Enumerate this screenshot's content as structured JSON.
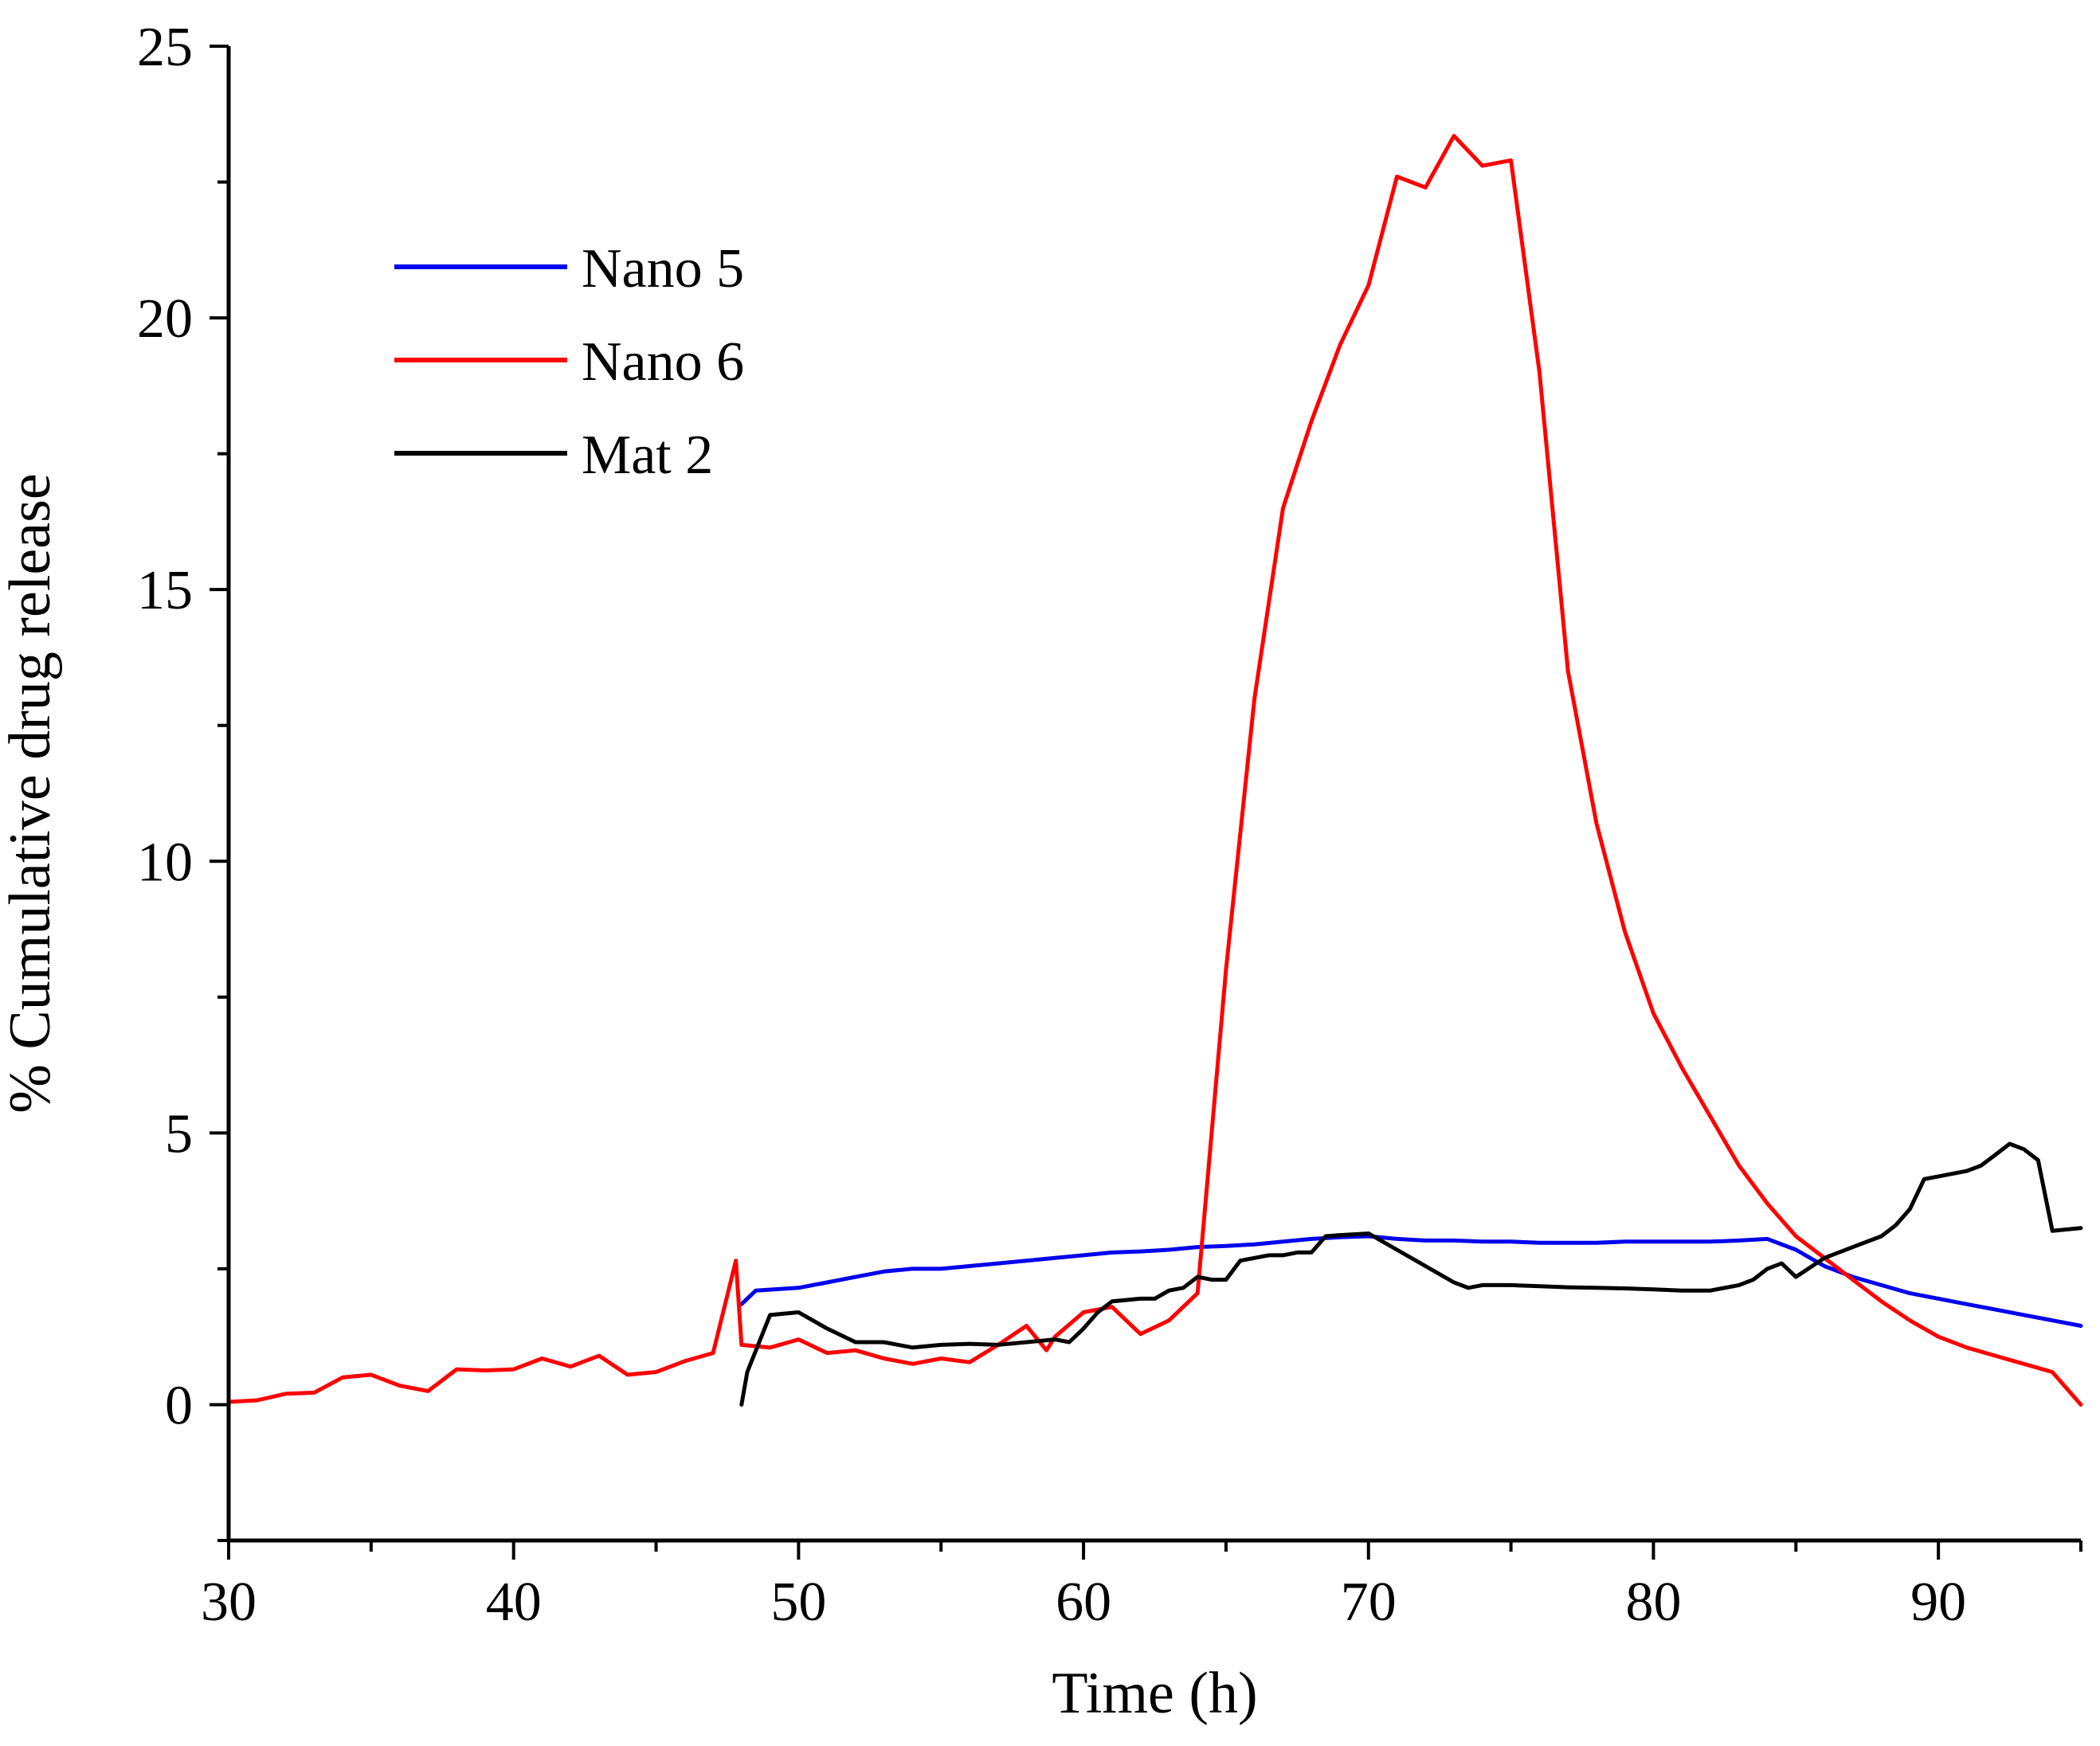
{
  "chart_data": {
    "type": "line",
    "title": "",
    "xlabel": "Time (h)",
    "ylabel": "% Cumulative drug release",
    "xlim": [
      30,
      95
    ],
    "ylim": [
      -2.5,
      25
    ],
    "xticks": [
      30,
      40,
      50,
      60,
      70,
      80,
      90
    ],
    "yticks": [
      0,
      5,
      10,
      15,
      20,
      25
    ],
    "grid": false,
    "legend_position": "top-left",
    "series": [
      {
        "name": "Nano 5",
        "color": "#0000ee",
        "x": [
          48,
          48.5,
          50,
          51,
          52,
          53,
          54,
          55,
          56,
          57,
          58,
          59,
          60,
          61,
          62,
          63,
          64,
          65,
          66,
          67,
          68,
          69,
          70,
          71,
          72,
          73,
          74,
          75,
          76,
          77,
          78,
          79,
          80,
          81,
          82,
          83,
          84,
          85,
          86,
          87,
          88,
          89,
          90,
          91,
          92,
          93,
          94,
          95
        ],
        "values": [
          1.85,
          2.1,
          2.15,
          2.25,
          2.35,
          2.45,
          2.5,
          2.5,
          2.55,
          2.6,
          2.65,
          2.7,
          2.75,
          2.8,
          2.82,
          2.85,
          2.9,
          2.92,
          2.95,
          3.0,
          3.05,
          3.08,
          3.1,
          3.05,
          3.02,
          3.02,
          3.0,
          3.0,
          2.98,
          2.98,
          2.98,
          3.0,
          3.0,
          3.0,
          3.0,
          3.02,
          3.05,
          2.85,
          2.55,
          2.35,
          2.2,
          2.05,
          1.95,
          1.85,
          1.75,
          1.65,
          1.55,
          1.45
        ]
      },
      {
        "name": "Nano 6",
        "color": "#ff0000",
        "x": [
          30,
          31,
          32,
          33,
          34,
          35,
          36,
          37,
          38,
          39,
          40,
          41,
          42,
          43,
          44,
          45,
          46,
          47,
          47.8,
          48,
          49,
          50,
          51,
          52,
          53,
          54,
          55,
          56,
          57,
          58,
          58.7,
          59,
          60,
          61,
          62,
          63,
          64,
          65,
          66,
          67,
          68,
          69,
          70,
          71,
          72,
          73,
          74,
          75,
          76,
          77,
          78,
          79,
          80,
          81,
          82,
          83,
          84,
          85,
          86,
          87,
          88,
          89,
          90,
          91,
          92,
          93,
          94,
          95
        ],
        "values": [
          0.05,
          0.08,
          0.2,
          0.22,
          0.5,
          0.55,
          0.35,
          0.25,
          0.65,
          0.63,
          0.65,
          0.85,
          0.7,
          0.9,
          0.55,
          0.6,
          0.8,
          0.95,
          2.65,
          1.1,
          1.05,
          1.2,
          0.95,
          1.0,
          0.85,
          0.75,
          0.85,
          0.78,
          1.1,
          1.45,
          1.0,
          1.25,
          1.7,
          1.8,
          1.3,
          1.55,
          2.05,
          8.0,
          13.0,
          16.5,
          18.1,
          19.5,
          20.6,
          22.6,
          22.4,
          23.35,
          22.8,
          22.9,
          19.0,
          13.5,
          10.7,
          8.7,
          7.2,
          6.2,
          5.3,
          4.4,
          3.7,
          3.1,
          2.7,
          2.3,
          1.9,
          1.55,
          1.25,
          1.05,
          0.9,
          0.75,
          0.6,
          0.0
        ]
      },
      {
        "name": "Mat 2",
        "color": "#000000",
        "x": [
          48,
          48.2,
          49,
          50,
          51,
          52,
          53,
          53.5,
          54,
          55,
          56,
          57,
          58,
          59,
          59.5,
          60,
          60.5,
          61,
          62,
          62.5,
          63,
          63.5,
          64,
          64.5,
          65,
          65.5,
          66,
          66.5,
          67,
          67.5,
          68,
          68.5,
          69,
          70,
          71,
          72,
          73,
          73.5,
          74,
          74.5,
          75,
          76,
          77,
          78,
          79,
          80,
          81,
          82,
          83,
          83.5,
          84,
          84.5,
          85,
          86,
          87,
          88,
          88.5,
          89,
          89.5,
          90,
          91,
          91.5,
          92,
          92.5,
          93,
          93.5,
          94,
          95
        ],
        "values": [
          0.0,
          0.6,
          1.65,
          1.7,
          1.4,
          1.15,
          1.15,
          1.1,
          1.05,
          1.1,
          1.12,
          1.1,
          1.15,
          1.2,
          1.15,
          1.4,
          1.7,
          1.9,
          1.95,
          1.95,
          2.1,
          2.15,
          2.35,
          2.3,
          2.3,
          2.65,
          2.7,
          2.75,
          2.75,
          2.8,
          2.8,
          3.1,
          3.12,
          3.15,
          2.85,
          2.55,
          2.25,
          2.15,
          2.2,
          2.2,
          2.2,
          2.18,
          2.16,
          2.15,
          2.14,
          2.12,
          2.1,
          2.1,
          2.2,
          2.3,
          2.5,
          2.6,
          2.35,
          2.7,
          2.9,
          3.1,
          3.3,
          3.6,
          4.15,
          4.2,
          4.3,
          4.4,
          4.6,
          4.8,
          4.7,
          4.5,
          3.2,
          3.25
        ]
      }
    ]
  }
}
